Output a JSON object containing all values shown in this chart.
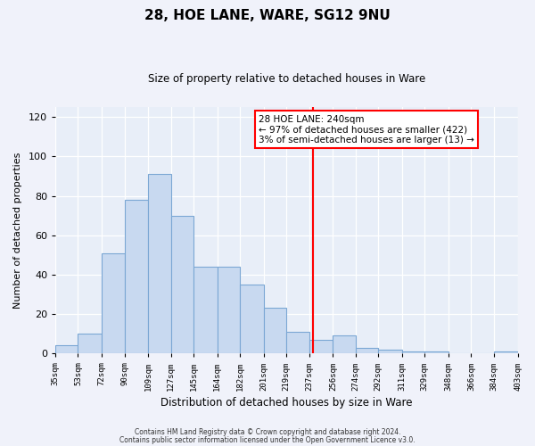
{
  "title": "28, HOE LANE, WARE, SG12 9NU",
  "subtitle": "Size of property relative to detached houses in Ware",
  "xlabel": "Distribution of detached houses by size in Ware",
  "ylabel": "Number of detached properties",
  "bar_color": "#c8d9f0",
  "bar_edge_color": "#7ba7d4",
  "bg_color": "#e8eef8",
  "grid_color": "#ffffff",
  "vline_x": 240,
  "vline_color": "red",
  "bin_edges": [
    35,
    53,
    72,
    90,
    109,
    127,
    145,
    164,
    182,
    201,
    219,
    237,
    256,
    274,
    292,
    311,
    329,
    348,
    366,
    384,
    403
  ],
  "bin_counts": [
    4,
    10,
    51,
    78,
    91,
    70,
    44,
    44,
    35,
    23,
    11,
    7,
    9,
    3,
    2,
    1,
    1,
    0,
    0,
    1
  ],
  "annotation_title": "28 HOE LANE: 240sqm",
  "annotation_line1": "← 97% of detached houses are smaller (422)",
  "annotation_line2": "3% of semi-detached houses are larger (13) →",
  "footer1": "Contains HM Land Registry data © Crown copyright and database right 2024.",
  "footer2": "Contains public sector information licensed under the Open Government Licence v3.0.",
  "ylim": [
    0,
    125
  ],
  "yticks": [
    0,
    20,
    40,
    60,
    80,
    100,
    120
  ],
  "tick_labels": [
    "35sqm",
    "53sqm",
    "72sqm",
    "90sqm",
    "109sqm",
    "127sqm",
    "145sqm",
    "164sqm",
    "182sqm",
    "201sqm",
    "219sqm",
    "237sqm",
    "256sqm",
    "274sqm",
    "292sqm",
    "311sqm",
    "329sqm",
    "348sqm",
    "366sqm",
    "384sqm",
    "403sqm"
  ]
}
